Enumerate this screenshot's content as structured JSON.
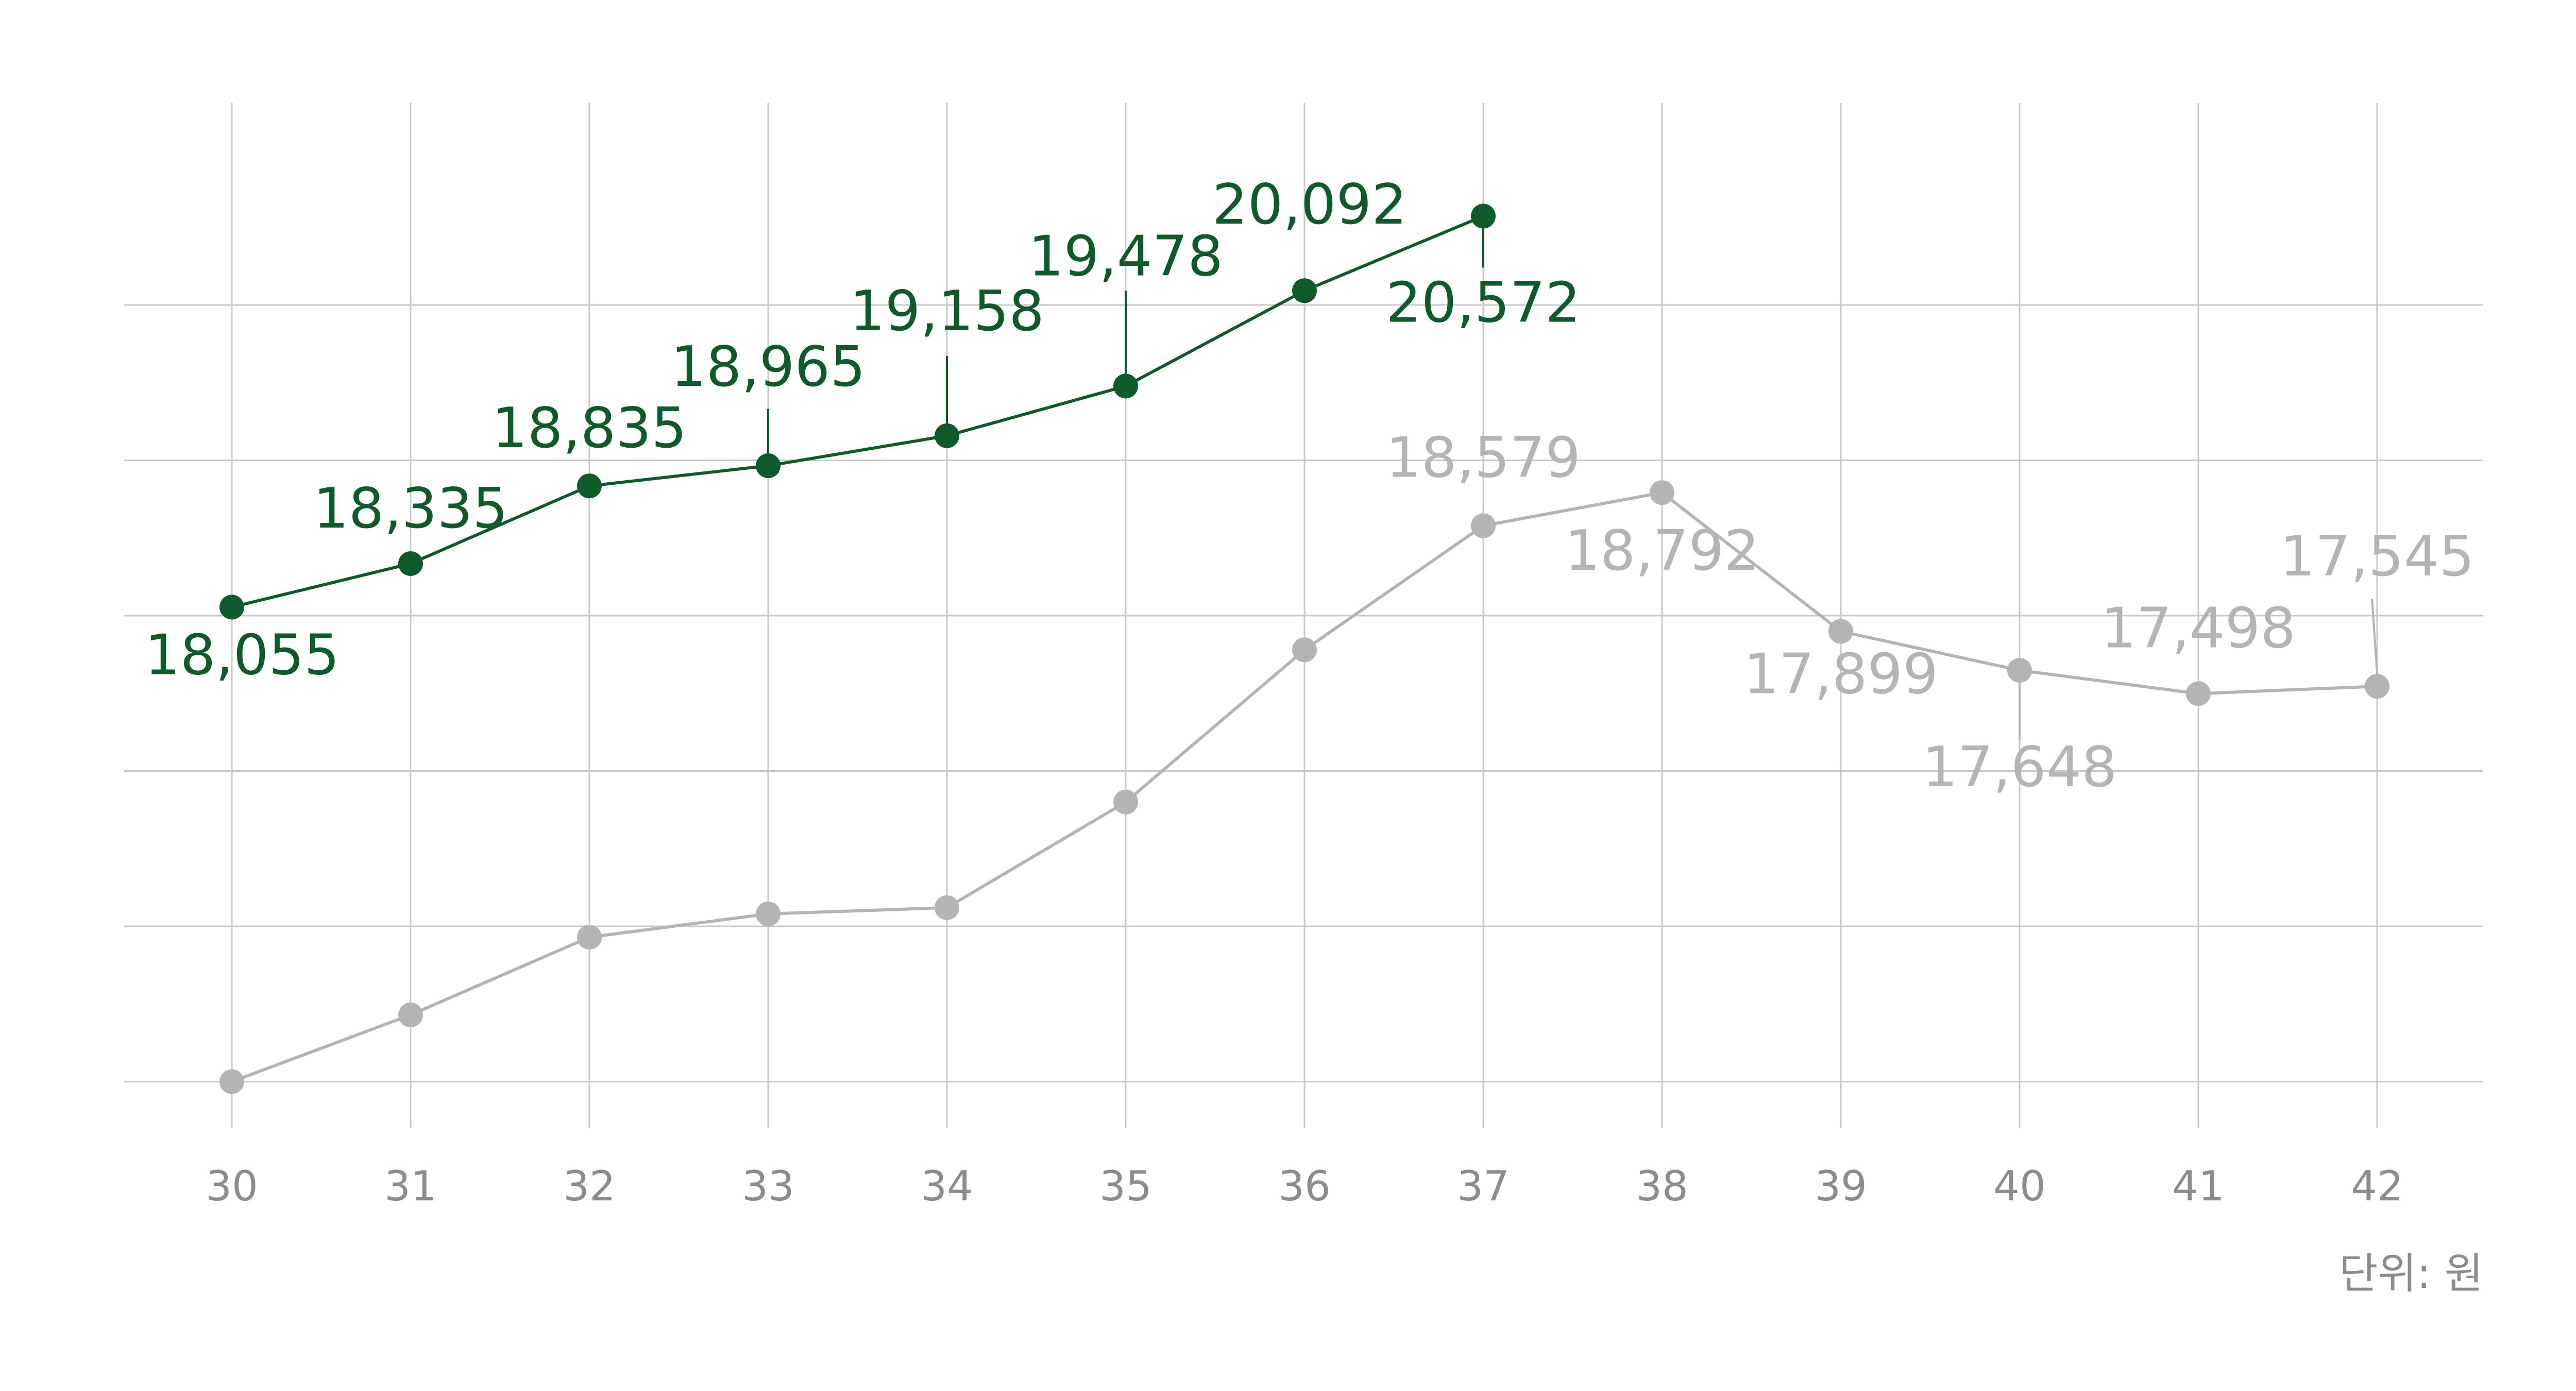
{
  "colors": {
    "series_primary": "#0e5a2a",
    "series_secondary": "#b4b4b4",
    "grid": "#c8c8c8",
    "tick_text": "#8c8c8c",
    "background": "#ffffff"
  },
  "unit_label": "단위: 원",
  "chart_data": {
    "type": "line",
    "title": "",
    "xlabel": "",
    "ylabel": "",
    "x": [
      30,
      31,
      32,
      33,
      34,
      35,
      36,
      37,
      38,
      39,
      40,
      41,
      42
    ],
    "ylim": [
      14700,
      21300
    ],
    "grid": true,
    "y_gridlines": [
      15000,
      16000,
      17000,
      18000,
      19000,
      20000
    ],
    "series": [
      {
        "color": "#0e5a2a",
        "values": [
          18055,
          18335,
          18835,
          18965,
          19158,
          19478,
          20092,
          20572,
          null,
          null,
          null,
          null,
          null
        ],
        "labels": [
          "18,055",
          "18,335",
          "18,835",
          "18,965",
          "19,158",
          "19,478",
          "20,092",
          "20,572",
          "",
          "",
          "",
          "",
          ""
        ]
      },
      {
        "color": "#b4b4b4",
        "values": [
          15000,
          15430,
          15930,
          16080,
          16120,
          16800,
          17780,
          18579,
          18792,
          17899,
          17648,
          17498,
          17545
        ],
        "labels": [
          "",
          "",
          "",
          "",
          "",
          "",
          "",
          "18,579",
          "18,792",
          "17,899",
          "17,648",
          "17,498",
          "17,545"
        ]
      }
    ]
  }
}
